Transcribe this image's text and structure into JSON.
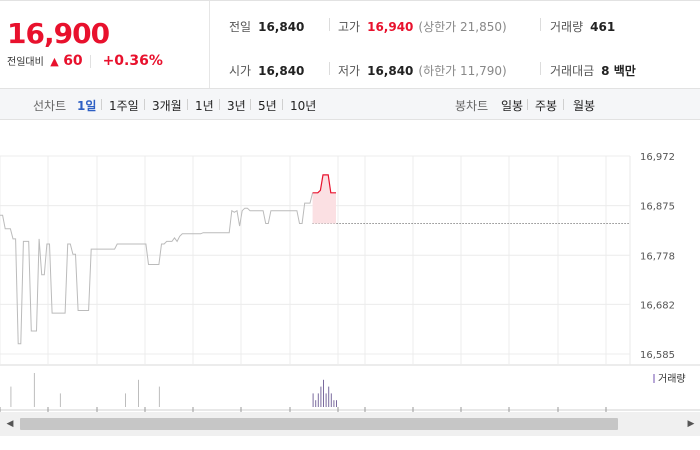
{
  "quote": {
    "price": "16,900",
    "change_label": "전일대비",
    "change_icon": "up-triangle-icon",
    "change_triangle": "▲",
    "change_amount": "60",
    "change_rate": "+0.36%",
    "cells": {
      "prev_close": {
        "label": "전일",
        "value": "16,840"
      },
      "high": {
        "label": "고가",
        "value": "16,940",
        "sub": "(상한가 21,850)"
      },
      "volume": {
        "label": "거래량",
        "value": "461"
      },
      "open": {
        "label": "시가",
        "value": "16,840"
      },
      "low": {
        "label": "저가",
        "value": "16,840",
        "sub": "(하한가 11,790)"
      },
      "trade_value": {
        "label": "거래대금",
        "value": "8 백만"
      }
    },
    "up_color": "#e8112d"
  },
  "tabs": {
    "line_chart_label": "선차트",
    "periods": [
      "1일",
      "1주일",
      "3개월",
      "1년",
      "3년",
      "5년",
      "10년"
    ],
    "active_period": "1일",
    "candle_chart_label": "봉차트",
    "candles": [
      "일봉",
      "주봉",
      "월봉"
    ],
    "active_color": "#2d5fc4"
  },
  "chart_data": {
    "type": "line",
    "title": "",
    "y_ticks": [
      "16,972",
      "16,875",
      "16,778",
      "16,682",
      "16,585"
    ],
    "y_tick_values": [
      16972,
      16875,
      16778,
      16682,
      16585
    ],
    "ylim": [
      16585,
      16972
    ],
    "prev_close_reference": 16840,
    "grid": true,
    "legend": "거래량",
    "series": [
      {
        "name": "",
        "color_before_today": "#bbbbbb",
        "color_today": "#e8112d",
        "values": [
          16856,
          16856,
          16830,
          16830,
          16830,
          16810,
          16810,
          16605,
          16605,
          16805,
          16805,
          16805,
          16630,
          16630,
          16630,
          16810,
          16740,
          16740,
          16800,
          16800,
          16665,
          16665,
          16665,
          16665,
          16665,
          16665,
          16800,
          16800,
          16780,
          16780,
          16670,
          16670,
          16670,
          16670,
          16670,
          16790,
          16790,
          16790,
          16790,
          16790,
          16790,
          16790,
          16790,
          16790,
          16790,
          16800,
          16800,
          16800,
          16800,
          16800,
          16800,
          16800,
          16800,
          16800,
          16800,
          16800,
          16800,
          16760,
          16760,
          16760,
          16760,
          16760,
          16800,
          16800,
          16805,
          16805,
          16805,
          16812,
          16805,
          16815,
          16820,
          16820,
          16820,
          16820,
          16820,
          16820,
          16820,
          16820,
          16822,
          16822,
          16822,
          16822,
          16822,
          16822,
          16822,
          16822,
          16822,
          16822,
          16822,
          16865,
          16862,
          16865,
          16835,
          16865,
          16870,
          16870,
          16865,
          16865,
          16865,
          16865,
          16865,
          16865,
          16840,
          16840,
          16865,
          16865,
          16865,
          16865,
          16865,
          16865,
          16865,
          16865,
          16865,
          16865,
          16865,
          16840,
          16840,
          16880,
          16880,
          16880,
          16900,
          16900,
          16900,
          16905,
          16935,
          16935,
          16935,
          16900,
          16900,
          16900
        ],
        "today_start_index": 120
      }
    ],
    "volume": [
      0,
      0,
      0,
      0,
      3,
      0,
      0,
      0,
      0,
      0,
      0,
      0,
      0,
      5,
      0,
      0,
      0,
      0,
      0,
      0,
      0,
      0,
      0,
      2,
      0,
      0,
      0,
      0,
      0,
      0,
      0,
      0,
      0,
      0,
      0,
      0,
      0,
      0,
      0,
      0,
      0,
      0,
      0,
      0,
      0,
      0,
      0,
      0,
      2,
      0,
      0,
      0,
      0,
      4,
      0,
      0,
      0,
      0,
      0,
      0,
      0,
      3,
      0,
      0,
      0,
      0,
      0,
      0,
      0,
      0,
      0,
      0,
      0,
      0,
      0,
      0,
      0,
      0,
      0,
      0,
      0,
      0,
      0,
      0,
      0,
      0,
      0,
      0,
      0,
      0,
      0,
      0,
      0,
      0,
      0,
      0,
      0,
      0,
      0,
      0,
      0,
      0,
      0,
      0,
      0,
      0,
      0,
      0,
      0,
      0,
      0,
      0,
      0,
      0,
      0,
      0,
      0,
      0,
      0,
      0,
      2,
      1,
      2,
      3,
      4,
      2,
      3,
      2,
      1,
      1
    ]
  },
  "scroll": {
    "left_arrow": "◀",
    "right_arrow": "▶"
  }
}
